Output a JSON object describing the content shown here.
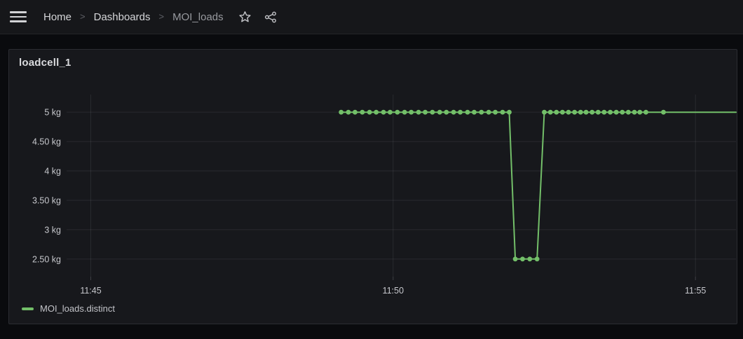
{
  "topbar": {
    "separator": ">",
    "breadcrumb": [
      {
        "label": "Home",
        "current": false
      },
      {
        "label": "Dashboards",
        "current": false
      },
      {
        "label": "MOI_loads",
        "current": true
      }
    ],
    "icons": {
      "menu": "hamburger-menu",
      "favorite": "star-outline",
      "share": "share-alt"
    }
  },
  "panel": {
    "title": "loadcell_1"
  },
  "colors": {
    "accent_green": "#73bf69",
    "grid": "rgba(204,204,220,0.10)",
    "tick_mark": "rgba(204,204,220,0.22)",
    "axis_text": "#c6c7cc",
    "panel_bg": "#17181c",
    "page_bg": "#0a0b0e"
  },
  "chart_data": {
    "type": "line",
    "title": "loadcell_1",
    "unit": "kg",
    "x_axis": {
      "tick_labels": [
        "11:45",
        "11:50",
        "11:55"
      ],
      "tick_minutes": [
        0,
        5,
        10
      ],
      "domain_minutes": [
        -0.4,
        10.67
      ],
      "grid": true
    },
    "y_axis": {
      "tick_labels": [
        "5 kg",
        "4.50 kg",
        "4 kg",
        "3.50 kg",
        "3 kg",
        "2.50 kg"
      ],
      "tick_values": [
        5,
        4.5,
        4,
        3.5,
        3,
        2.5
      ],
      "domain": [
        2.2,
        5.3
      ],
      "grid": true
    },
    "legend": {
      "position": "bottom-left",
      "entries": [
        {
          "label": "MOI_loads.distinct",
          "color": "#73bf69"
        }
      ]
    },
    "series": [
      {
        "name": "MOI_loads.distinct",
        "color": "#73bf69",
        "line_width": 2,
        "marker_radius": 3.4,
        "points": [
          [
            4.14,
            5
          ],
          [
            4.26,
            5
          ],
          [
            4.37,
            5
          ],
          [
            4.49,
            5
          ],
          [
            4.61,
            5
          ],
          [
            4.72,
            5
          ],
          [
            4.84,
            5
          ],
          [
            4.95,
            5
          ],
          [
            5.07,
            5
          ],
          [
            5.19,
            5
          ],
          [
            5.3,
            5
          ],
          [
            5.42,
            5
          ],
          [
            5.53,
            5
          ],
          [
            5.65,
            5
          ],
          [
            5.77,
            5
          ],
          [
            5.88,
            5
          ],
          [
            6.0,
            5
          ],
          [
            6.11,
            5
          ],
          [
            6.23,
            5
          ],
          [
            6.34,
            5
          ],
          [
            6.46,
            5
          ],
          [
            6.58,
            5
          ],
          [
            6.69,
            5
          ],
          [
            6.81,
            5
          ],
          [
            6.92,
            5
          ],
          [
            7.02,
            2.5
          ],
          [
            7.14,
            2.5
          ],
          [
            7.26,
            2.5
          ],
          [
            7.38,
            2.5
          ],
          [
            7.5,
            5
          ],
          [
            7.6,
            5
          ],
          [
            7.7,
            5
          ],
          [
            7.8,
            5
          ],
          [
            7.9,
            5
          ],
          [
            8.0,
            5
          ],
          [
            8.1,
            5
          ],
          [
            8.19,
            5
          ],
          [
            8.29,
            5
          ],
          [
            8.39,
            5
          ],
          [
            8.49,
            5
          ],
          [
            8.59,
            5
          ],
          [
            8.69,
            5
          ],
          [
            8.79,
            5
          ],
          [
            8.89,
            5
          ],
          [
            8.99,
            5
          ],
          [
            9.08,
            5
          ],
          [
            9.18,
            5
          ],
          [
            9.47,
            5
          ]
        ],
        "tail_point": [
          10.67,
          5
        ]
      }
    ]
  }
}
